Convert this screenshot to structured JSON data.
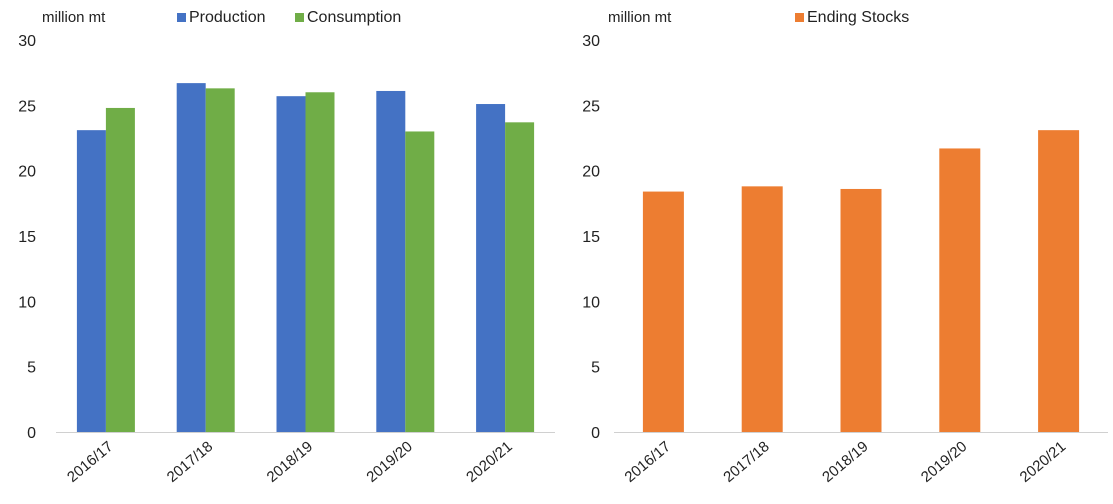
{
  "chart_data": [
    {
      "type": "bar",
      "unit_label": "million mt",
      "categories": [
        "2016/17",
        "2017/18",
        "2018/19",
        "2019/20",
        "2020/21"
      ],
      "series": [
        {
          "name": "Production",
          "color": "#4472C4",
          "values": [
            23.1,
            26.7,
            25.7,
            26.1,
            25.1
          ]
        },
        {
          "name": "Consumption",
          "color": "#70AD47",
          "values": [
            24.8,
            26.3,
            26.0,
            23.0,
            23.7
          ]
        }
      ],
      "ylim": [
        0,
        30
      ],
      "yticks": [
        0,
        5,
        10,
        15,
        20,
        25,
        30
      ],
      "legend_position": "top",
      "grid": false
    },
    {
      "type": "bar",
      "unit_label": "million mt",
      "categories": [
        "2016/17",
        "2017/18",
        "2018/19",
        "2019/20",
        "2020/21"
      ],
      "series": [
        {
          "name": "Ending Stocks",
          "color": "#ED7D31",
          "values": [
            18.4,
            18.8,
            18.6,
            21.7,
            23.1
          ]
        }
      ],
      "ylim": [
        0,
        30
      ],
      "yticks": [
        0,
        5,
        10,
        15,
        20,
        25,
        30
      ],
      "legend_position": "top",
      "grid": false
    }
  ]
}
